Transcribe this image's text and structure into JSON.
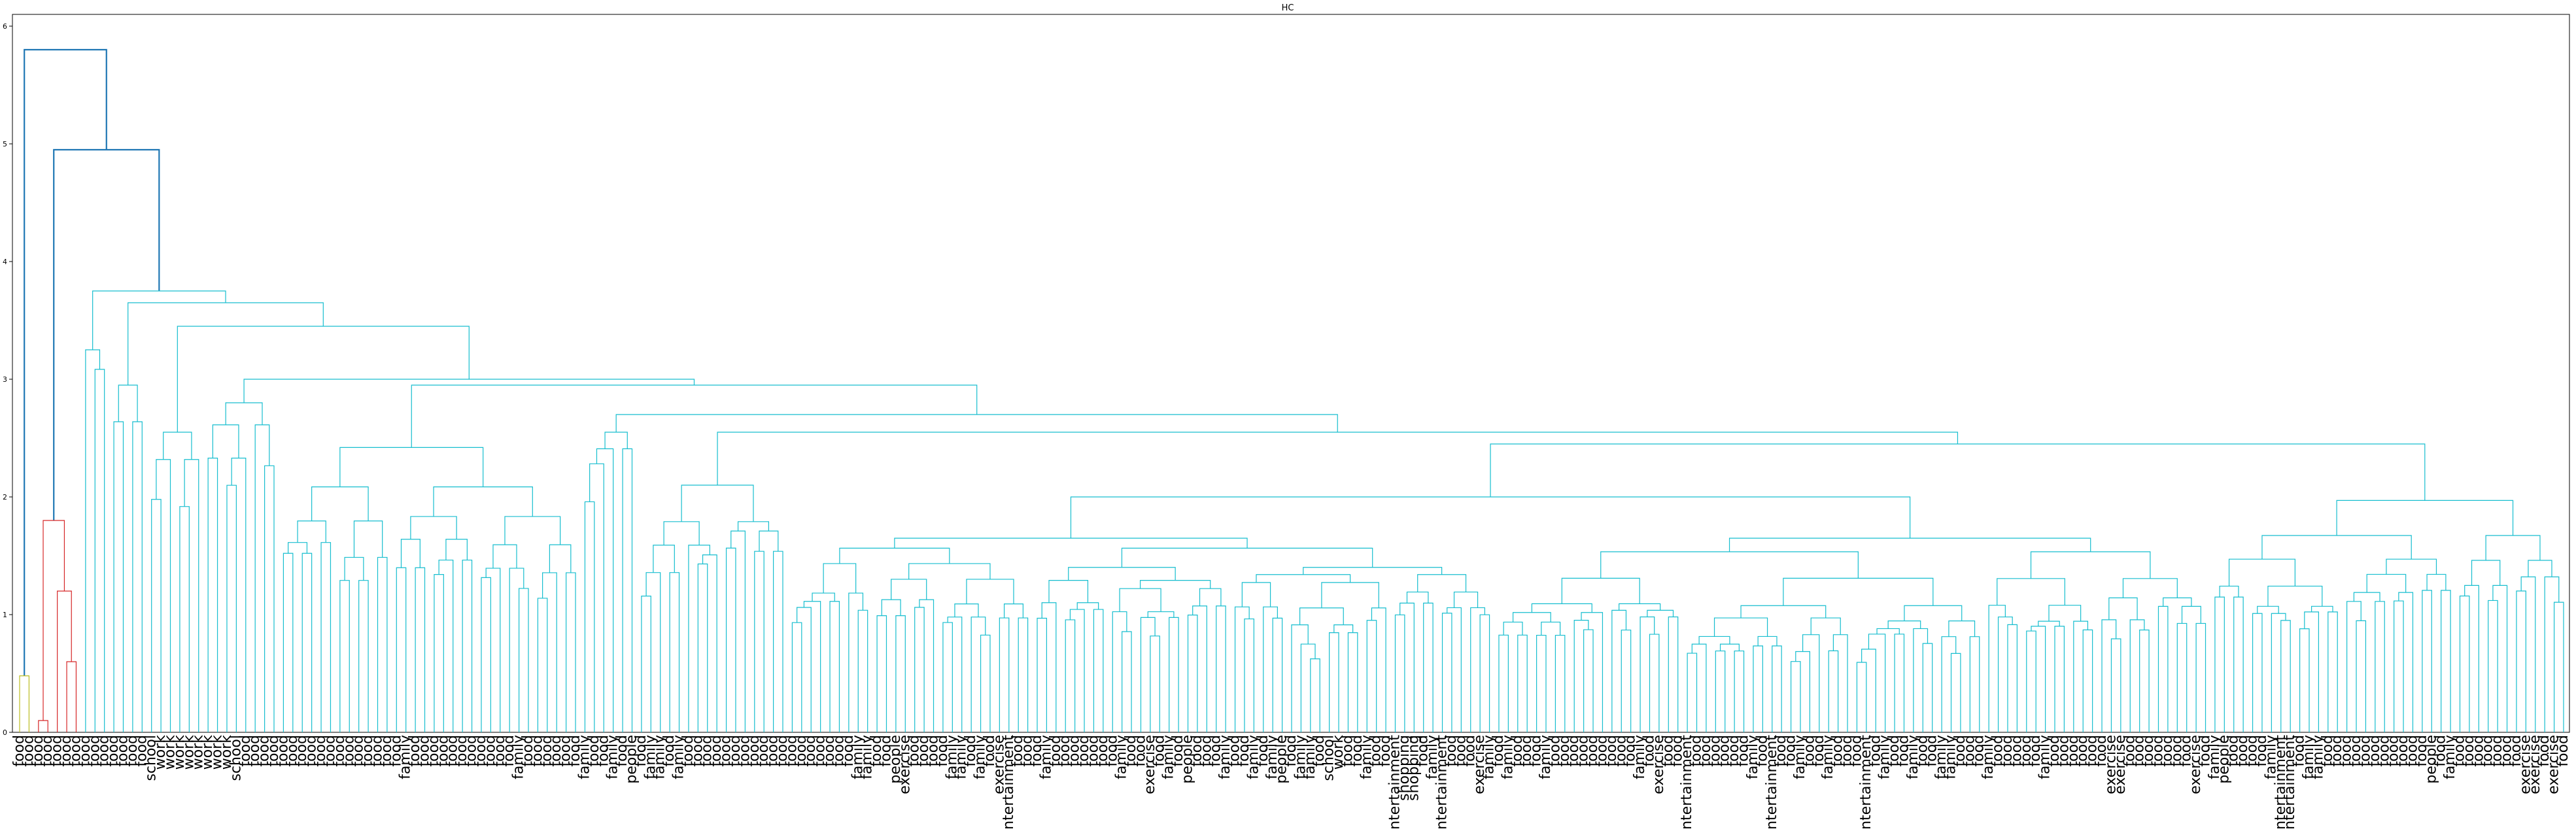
{
  "chart_data": {
    "type": "dendrogram",
    "title": "HC",
    "xlabel": "",
    "ylabel": "",
    "ylim": [
      0,
      6.1
    ],
    "yticks": [
      0,
      1,
      2,
      3,
      4,
      5,
      6
    ],
    "grid": false,
    "colors": {
      "top_link": "#1f77b4",
      "cluster_olive": "#bcbd22",
      "cluster_red": "#d62728",
      "cluster_cyan": "#17becf",
      "axis": "#000000"
    },
    "merge_heights": {
      "root": 5.8,
      "second": 4.95,
      "cyan_cluster": 3.75,
      "red_cluster": 1.8,
      "olive_cluster": 0.48
    },
    "leaf_label_legend": [
      "food",
      "school",
      "work",
      "family",
      "people",
      "entertainment",
      "exercise",
      "shopping"
    ],
    "visible_leaf_labels": [
      "food",
      "food",
      "food",
      "food",
      "food",
      "food",
      "food",
      "food",
      "food",
      "food",
      "food",
      "food",
      "food",
      "food",
      "school",
      "work",
      "work",
      "work",
      "work",
      "work",
      "work",
      "work",
      "work",
      "school",
      "food",
      "food",
      "food",
      "food",
      "food",
      "food",
      "food",
      "food",
      "food",
      "food",
      "food",
      "food",
      "food",
      "food",
      "food",
      "food",
      "food",
      "family",
      "food",
      "food",
      "food",
      "food",
      "food",
      "food",
      "food",
      "food",
      "food",
      "food",
      "food",
      "family",
      "food",
      "food",
      "food",
      "food",
      "food",
      "food",
      "family",
      "food",
      "food",
      "family",
      "food",
      "people",
      "food",
      "family",
      "family",
      "food",
      "family",
      "food",
      "food",
      "food",
      "food",
      "food",
      "food",
      "food",
      "food",
      "food",
      "food",
      "food",
      "food",
      "food",
      "food",
      "food",
      "food",
      "food",
      "food",
      "family",
      "family",
      "food",
      "food",
      "people",
      "exercise",
      "food",
      "food",
      "food",
      "food",
      "family",
      "family",
      "food",
      "family",
      "food",
      "exercise",
      "entertainment",
      "food",
      "food",
      "food",
      "family",
      "food",
      "food",
      "food",
      "food",
      "food",
      "food",
      "food",
      "family",
      "food",
      "food",
      "exercise",
      "food",
      "family",
      "food",
      "people",
      "food",
      "food",
      "food",
      "family",
      "food",
      "food",
      "family",
      "food",
      "family",
      "people",
      "food",
      "family",
      "family",
      "food",
      "school",
      "work",
      "food",
      "food",
      "family",
      "food",
      "food",
      "entertainment",
      "shopping",
      "shopping",
      "food",
      "family",
      "entertainment",
      "food",
      "food",
      "food",
      "exercise",
      "family",
      "food",
      "family",
      "food",
      "food",
      "food",
      "family",
      "food",
      "food",
      "food",
      "food",
      "food",
      "food",
      "food",
      "food",
      "food",
      "family",
      "food",
      "exercise",
      "food",
      "food",
      "entertainment",
      "food",
      "food",
      "food",
      "food",
      "food",
      "food",
      "family",
      "food",
      "entertainment",
      "food",
      "food",
      "family",
      "food",
      "food",
      "family",
      "food",
      "food",
      "food",
      "entertainment",
      "food",
      "family",
      "food",
      "food",
      "family",
      "food",
      "food",
      "family",
      "family",
      "food",
      "food",
      "food",
      "family",
      "food",
      "food",
      "food",
      "food",
      "food",
      "family",
      "food",
      "food",
      "food",
      "food",
      "food",
      "food",
      "exercise",
      "exercise",
      "food",
      "food",
      "food",
      "food",
      "food",
      "food",
      "food",
      "exercise",
      "food",
      "family",
      "people",
      "food",
      "food",
      "food",
      "food",
      "family",
      "entertainment",
      "entertainment",
      "food",
      "family",
      "family",
      "food",
      "food",
      "food",
      "food",
      "food",
      "food",
      "food",
      "food",
      "food",
      "food",
      "food",
      "people",
      "food",
      "family",
      "food",
      "food",
      "food",
      "food",
      "food",
      "food",
      "food",
      "exercise",
      "exercise",
      "food",
      "exercise",
      "food"
    ]
  }
}
